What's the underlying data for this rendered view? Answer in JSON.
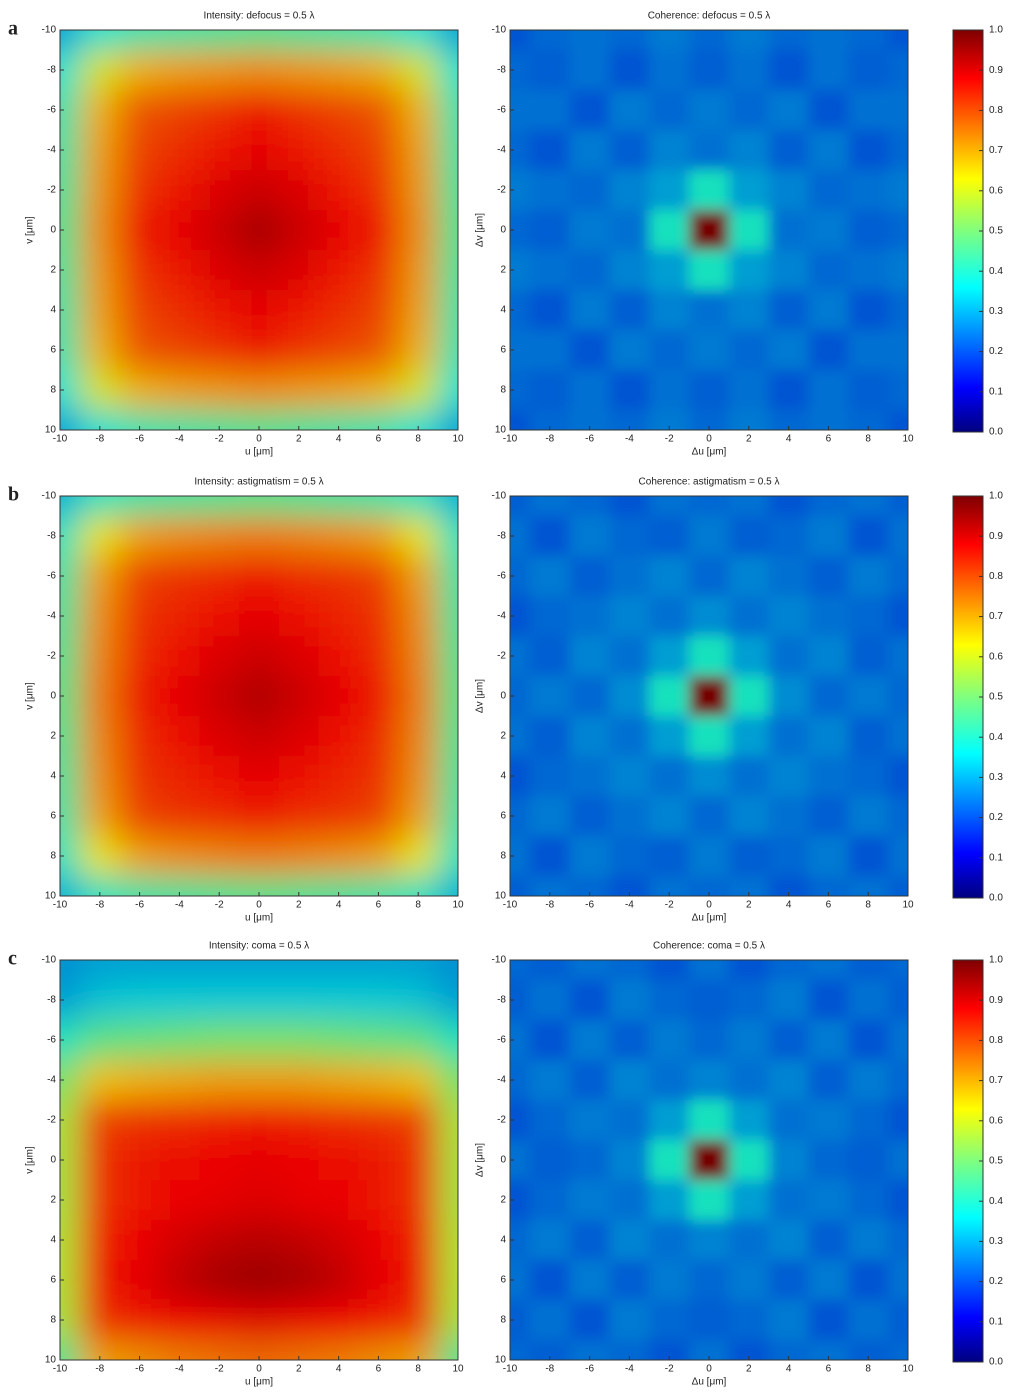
{
  "chart_data": [
    {
      "type": "heatmap",
      "panel_label": "a",
      "title": "Intensity: defocus = 0.5 λ",
      "xlabel": "u [μm]",
      "ylabel": "v [μm]",
      "x": [
        -10,
        -8,
        -6,
        -4,
        -2,
        0,
        2,
        4,
        6,
        8,
        10
      ],
      "y": [
        -10,
        -8,
        -6,
        -4,
        -2,
        0,
        2,
        4,
        6,
        8,
        10
      ],
      "z": [
        [
          0.3,
          0.38,
          0.42,
          0.43,
          0.44,
          0.45,
          0.44,
          0.43,
          0.42,
          0.38,
          0.3
        ],
        [
          0.38,
          0.6,
          0.68,
          0.7,
          0.71,
          0.72,
          0.71,
          0.7,
          0.68,
          0.6,
          0.38
        ],
        [
          0.42,
          0.68,
          0.78,
          0.8,
          0.82,
          0.85,
          0.82,
          0.8,
          0.78,
          0.68,
          0.42
        ],
        [
          0.43,
          0.7,
          0.8,
          0.83,
          0.85,
          0.88,
          0.85,
          0.83,
          0.8,
          0.7,
          0.43
        ],
        [
          0.44,
          0.71,
          0.82,
          0.85,
          0.89,
          0.91,
          0.89,
          0.85,
          0.82,
          0.71,
          0.44
        ],
        [
          0.45,
          0.72,
          0.85,
          0.88,
          0.91,
          0.95,
          0.91,
          0.88,
          0.85,
          0.72,
          0.45
        ],
        [
          0.44,
          0.71,
          0.82,
          0.85,
          0.89,
          0.91,
          0.89,
          0.85,
          0.82,
          0.71,
          0.44
        ],
        [
          0.43,
          0.7,
          0.8,
          0.83,
          0.85,
          0.88,
          0.85,
          0.83,
          0.8,
          0.7,
          0.43
        ],
        [
          0.42,
          0.68,
          0.78,
          0.8,
          0.82,
          0.85,
          0.82,
          0.8,
          0.78,
          0.68,
          0.42
        ],
        [
          0.38,
          0.6,
          0.68,
          0.7,
          0.71,
          0.72,
          0.71,
          0.7,
          0.68,
          0.6,
          0.38
        ],
        [
          0.3,
          0.38,
          0.42,
          0.43,
          0.44,
          0.45,
          0.44,
          0.43,
          0.42,
          0.38,
          0.3
        ]
      ],
      "xlim": [
        -10,
        10
      ],
      "ylim": [
        10,
        -10
      ],
      "xticks": [
        -10,
        -8,
        -6,
        -4,
        -2,
        0,
        2,
        4,
        6,
        8,
        10
      ],
      "yticks": [
        -10,
        -8,
        -6,
        -4,
        -2,
        0,
        2,
        4,
        6,
        8,
        10
      ]
    },
    {
      "type": "heatmap",
      "title": "Coherence: defocus = 0.5 λ",
      "xlabel": "Δu [μm]",
      "ylabel": "Δv [μm]",
      "x": [
        -10,
        -8,
        -6,
        -4,
        -2,
        0,
        2,
        4,
        6,
        8,
        10
      ],
      "y": [
        -10,
        -8,
        -6,
        -4,
        -2,
        0,
        2,
        4,
        6,
        8,
        10
      ],
      "z": [
        [
          0.22,
          0.24,
          0.25,
          0.24,
          0.26,
          0.24,
          0.26,
          0.24,
          0.25,
          0.24,
          0.22
        ],
        [
          0.24,
          0.23,
          0.25,
          0.22,
          0.25,
          0.23,
          0.25,
          0.22,
          0.25,
          0.23,
          0.24
        ],
        [
          0.25,
          0.25,
          0.22,
          0.26,
          0.24,
          0.26,
          0.24,
          0.26,
          0.22,
          0.25,
          0.25
        ],
        [
          0.24,
          0.22,
          0.26,
          0.23,
          0.27,
          0.25,
          0.27,
          0.23,
          0.26,
          0.22,
          0.24
        ],
        [
          0.26,
          0.25,
          0.24,
          0.27,
          0.3,
          0.4,
          0.3,
          0.27,
          0.24,
          0.25,
          0.26
        ],
        [
          0.24,
          0.23,
          0.26,
          0.25,
          0.4,
          1.0,
          0.4,
          0.25,
          0.26,
          0.23,
          0.24
        ],
        [
          0.26,
          0.25,
          0.24,
          0.27,
          0.3,
          0.4,
          0.3,
          0.27,
          0.24,
          0.25,
          0.26
        ],
        [
          0.24,
          0.22,
          0.26,
          0.23,
          0.27,
          0.25,
          0.27,
          0.23,
          0.26,
          0.22,
          0.24
        ],
        [
          0.25,
          0.25,
          0.22,
          0.26,
          0.24,
          0.26,
          0.24,
          0.26,
          0.22,
          0.25,
          0.25
        ],
        [
          0.24,
          0.23,
          0.25,
          0.22,
          0.25,
          0.23,
          0.25,
          0.22,
          0.25,
          0.23,
          0.24
        ],
        [
          0.22,
          0.24,
          0.25,
          0.24,
          0.26,
          0.24,
          0.26,
          0.24,
          0.25,
          0.24,
          0.22
        ]
      ],
      "xlim": [
        -10,
        10
      ],
      "ylim": [
        10,
        -10
      ],
      "xticks": [
        -10,
        -8,
        -6,
        -4,
        -2,
        0,
        2,
        4,
        6,
        8,
        10
      ],
      "yticks": [
        -10,
        -8,
        -6,
        -4,
        -2,
        0,
        2,
        4,
        6,
        8,
        10
      ],
      "colorbar": {
        "clim": [
          0,
          1
        ],
        "ticks": [
          {
            "value": 0,
            "label": "0.0"
          },
          0.1,
          0.2,
          0.3,
          0.4,
          0.5,
          0.6,
          0.7,
          0.8,
          0.9,
          {
            "value": 1,
            "label": "1.0"
          }
        ]
      }
    },
    {
      "type": "heatmap",
      "panel_label": "b",
      "title": "Intensity: astigmatism = 0.5 λ",
      "xlabel": "u [μm]",
      "ylabel": "v [μm]",
      "x": [
        -10,
        -8,
        -6,
        -4,
        -2,
        0,
        2,
        4,
        6,
        8,
        10
      ],
      "y": [
        -10,
        -8,
        -6,
        -4,
        -2,
        0,
        2,
        4,
        6,
        8,
        10
      ],
      "z": [
        [
          0.32,
          0.4,
          0.43,
          0.44,
          0.45,
          0.46,
          0.45,
          0.44,
          0.43,
          0.4,
          0.32
        ],
        [
          0.4,
          0.62,
          0.7,
          0.72,
          0.73,
          0.74,
          0.73,
          0.72,
          0.7,
          0.62,
          0.4
        ],
        [
          0.43,
          0.7,
          0.8,
          0.82,
          0.83,
          0.85,
          0.83,
          0.82,
          0.8,
          0.7,
          0.43
        ],
        [
          0.44,
          0.72,
          0.82,
          0.84,
          0.86,
          0.88,
          0.86,
          0.84,
          0.82,
          0.72,
          0.44
        ],
        [
          0.45,
          0.73,
          0.83,
          0.86,
          0.89,
          0.91,
          0.89,
          0.86,
          0.83,
          0.73,
          0.45
        ],
        [
          0.46,
          0.74,
          0.85,
          0.88,
          0.91,
          0.94,
          0.91,
          0.88,
          0.85,
          0.74,
          0.46
        ],
        [
          0.45,
          0.73,
          0.83,
          0.86,
          0.89,
          0.91,
          0.89,
          0.86,
          0.83,
          0.73,
          0.45
        ],
        [
          0.44,
          0.72,
          0.82,
          0.84,
          0.86,
          0.88,
          0.86,
          0.84,
          0.82,
          0.72,
          0.44
        ],
        [
          0.43,
          0.7,
          0.8,
          0.82,
          0.83,
          0.85,
          0.83,
          0.82,
          0.8,
          0.7,
          0.43
        ],
        [
          0.4,
          0.62,
          0.7,
          0.72,
          0.73,
          0.74,
          0.73,
          0.72,
          0.7,
          0.62,
          0.4
        ],
        [
          0.32,
          0.4,
          0.43,
          0.44,
          0.45,
          0.46,
          0.45,
          0.44,
          0.43,
          0.4,
          0.32
        ]
      ],
      "xlim": [
        -10,
        10
      ],
      "ylim": [
        10,
        -10
      ],
      "xticks": [
        -10,
        -8,
        -6,
        -4,
        -2,
        0,
        2,
        4,
        6,
        8,
        10
      ],
      "yticks": [
        -10,
        -8,
        -6,
        -4,
        -2,
        0,
        2,
        4,
        6,
        8,
        10
      ]
    },
    {
      "type": "heatmap",
      "title": "Coherence: astigmatism = 0.5 λ",
      "xlabel": "Δu [μm]",
      "ylabel": "Δv [μm]",
      "x": [
        -10,
        -8,
        -6,
        -4,
        -2,
        0,
        2,
        4,
        6,
        8,
        10
      ],
      "y": [
        -10,
        -8,
        -6,
        -4,
        -2,
        0,
        2,
        4,
        6,
        8,
        10
      ],
      "z": [
        [
          0.23,
          0.25,
          0.24,
          0.22,
          0.25,
          0.24,
          0.25,
          0.22,
          0.24,
          0.25,
          0.23
        ],
        [
          0.25,
          0.22,
          0.26,
          0.24,
          0.23,
          0.26,
          0.23,
          0.24,
          0.26,
          0.22,
          0.25
        ],
        [
          0.24,
          0.26,
          0.23,
          0.25,
          0.27,
          0.24,
          0.27,
          0.25,
          0.23,
          0.26,
          0.24
        ],
        [
          0.22,
          0.24,
          0.25,
          0.27,
          0.25,
          0.28,
          0.25,
          0.27,
          0.25,
          0.24,
          0.22
        ],
        [
          0.25,
          0.23,
          0.27,
          0.25,
          0.3,
          0.4,
          0.3,
          0.25,
          0.27,
          0.23,
          0.25
        ],
        [
          0.24,
          0.26,
          0.24,
          0.28,
          0.4,
          1.0,
          0.4,
          0.28,
          0.24,
          0.26,
          0.24
        ],
        [
          0.25,
          0.23,
          0.27,
          0.25,
          0.3,
          0.4,
          0.3,
          0.25,
          0.27,
          0.23,
          0.25
        ],
        [
          0.22,
          0.24,
          0.25,
          0.27,
          0.25,
          0.28,
          0.25,
          0.27,
          0.25,
          0.24,
          0.22
        ],
        [
          0.24,
          0.26,
          0.23,
          0.25,
          0.27,
          0.24,
          0.27,
          0.25,
          0.23,
          0.26,
          0.24
        ],
        [
          0.25,
          0.22,
          0.26,
          0.24,
          0.23,
          0.26,
          0.23,
          0.24,
          0.26,
          0.22,
          0.25
        ],
        [
          0.23,
          0.25,
          0.24,
          0.22,
          0.25,
          0.24,
          0.25,
          0.22,
          0.24,
          0.25,
          0.23
        ]
      ],
      "xlim": [
        -10,
        10
      ],
      "ylim": [
        10,
        -10
      ],
      "xticks": [
        -10,
        -8,
        -6,
        -4,
        -2,
        0,
        2,
        4,
        6,
        8,
        10
      ],
      "yticks": [
        -10,
        -8,
        -6,
        -4,
        -2,
        0,
        2,
        4,
        6,
        8,
        10
      ],
      "colorbar": {
        "clim": [
          0,
          1
        ],
        "ticks": [
          {
            "value": 0,
            "label": "0.0"
          },
          0.1,
          0.2,
          0.3,
          0.4,
          0.5,
          0.6,
          0.7,
          0.8,
          0.9,
          {
            "value": 1,
            "label": "1.0"
          }
        ]
      }
    },
    {
      "type": "heatmap",
      "panel_label": "c",
      "title": "Intensity: coma = 0.5 λ",
      "xlabel": "u [μm]",
      "ylabel": "v [μm]",
      "x": [
        -10,
        -8,
        -6,
        -4,
        -2,
        0,
        2,
        4,
        6,
        8,
        10
      ],
      "y": [
        -10,
        -8,
        -6,
        -4,
        -2,
        0,
        2,
        4,
        6,
        8,
        10
      ],
      "z": [
        [
          0.28,
          0.3,
          0.3,
          0.3,
          0.3,
          0.3,
          0.3,
          0.3,
          0.3,
          0.3,
          0.28
        ],
        [
          0.3,
          0.34,
          0.35,
          0.35,
          0.35,
          0.35,
          0.35,
          0.35,
          0.35,
          0.34,
          0.3
        ],
        [
          0.4,
          0.47,
          0.48,
          0.49,
          0.5,
          0.5,
          0.5,
          0.49,
          0.48,
          0.47,
          0.4
        ],
        [
          0.5,
          0.66,
          0.68,
          0.69,
          0.7,
          0.7,
          0.7,
          0.69,
          0.68,
          0.66,
          0.5
        ],
        [
          0.55,
          0.8,
          0.82,
          0.83,
          0.84,
          0.85,
          0.84,
          0.83,
          0.82,
          0.8,
          0.55
        ],
        [
          0.55,
          0.82,
          0.85,
          0.86,
          0.87,
          0.88,
          0.87,
          0.86,
          0.85,
          0.82,
          0.55
        ],
        [
          0.55,
          0.82,
          0.85,
          0.87,
          0.88,
          0.89,
          0.88,
          0.87,
          0.85,
          0.82,
          0.55
        ],
        [
          0.56,
          0.84,
          0.87,
          0.9,
          0.92,
          0.93,
          0.92,
          0.9,
          0.87,
          0.84,
          0.56
        ],
        [
          0.56,
          0.85,
          0.88,
          0.92,
          0.95,
          0.96,
          0.95,
          0.92,
          0.88,
          0.85,
          0.56
        ],
        [
          0.55,
          0.82,
          0.85,
          0.87,
          0.88,
          0.89,
          0.88,
          0.87,
          0.85,
          0.82,
          0.55
        ],
        [
          0.45,
          0.7,
          0.72,
          0.74,
          0.75,
          0.76,
          0.75,
          0.74,
          0.72,
          0.7,
          0.45
        ]
      ],
      "xlim": [
        -10,
        10
      ],
      "ylim": [
        10,
        -10
      ],
      "xticks": [
        -10,
        -8,
        -6,
        -4,
        -2,
        0,
        2,
        4,
        6,
        8,
        10
      ],
      "yticks": [
        -10,
        -8,
        -6,
        -4,
        -2,
        0,
        2,
        4,
        6,
        8,
        10
      ]
    },
    {
      "type": "heatmap",
      "title": "Coherence: coma = 0.5 λ",
      "xlabel": "Δu [μm]",
      "ylabel": "Δv [μm]",
      "x": [
        -10,
        -8,
        -6,
        -4,
        -2,
        0,
        2,
        4,
        6,
        8,
        10
      ],
      "y": [
        -10,
        -8,
        -6,
        -4,
        -2,
        0,
        2,
        4,
        6,
        8,
        10
      ],
      "z": [
        [
          0.24,
          0.23,
          0.25,
          0.24,
          0.22,
          0.25,
          0.22,
          0.24,
          0.25,
          0.23,
          0.24
        ],
        [
          0.23,
          0.25,
          0.22,
          0.26,
          0.24,
          0.23,
          0.24,
          0.26,
          0.22,
          0.25,
          0.23
        ],
        [
          0.25,
          0.22,
          0.26,
          0.23,
          0.26,
          0.24,
          0.26,
          0.23,
          0.26,
          0.22,
          0.25
        ],
        [
          0.24,
          0.26,
          0.23,
          0.27,
          0.25,
          0.27,
          0.25,
          0.27,
          0.23,
          0.26,
          0.24
        ],
        [
          0.22,
          0.24,
          0.26,
          0.25,
          0.3,
          0.4,
          0.3,
          0.25,
          0.26,
          0.24,
          0.22
        ],
        [
          0.25,
          0.23,
          0.24,
          0.27,
          0.4,
          1.0,
          0.4,
          0.27,
          0.24,
          0.23,
          0.25
        ],
        [
          0.22,
          0.24,
          0.26,
          0.25,
          0.3,
          0.4,
          0.3,
          0.25,
          0.26,
          0.24,
          0.22
        ],
        [
          0.24,
          0.26,
          0.23,
          0.27,
          0.25,
          0.27,
          0.25,
          0.27,
          0.23,
          0.26,
          0.24
        ],
        [
          0.25,
          0.22,
          0.26,
          0.23,
          0.26,
          0.24,
          0.26,
          0.23,
          0.26,
          0.22,
          0.25
        ],
        [
          0.23,
          0.25,
          0.22,
          0.26,
          0.24,
          0.23,
          0.24,
          0.26,
          0.22,
          0.25,
          0.23
        ],
        [
          0.24,
          0.23,
          0.25,
          0.24,
          0.22,
          0.25,
          0.22,
          0.24,
          0.25,
          0.23,
          0.24
        ]
      ],
      "xlim": [
        -10,
        10
      ],
      "ylim": [
        10,
        -10
      ],
      "xticks": [
        -10,
        -8,
        -6,
        -4,
        -2,
        0,
        2,
        4,
        6,
        8,
        10
      ],
      "yticks": [
        -10,
        -8,
        -6,
        -4,
        -2,
        0,
        2,
        4,
        6,
        8,
        10
      ],
      "colorbar": {
        "clim": [
          0,
          1
        ],
        "ticks": [
          {
            "value": 0,
            "label": "0.0"
          },
          0.1,
          0.2,
          0.3,
          0.4,
          0.5,
          0.6,
          0.7,
          0.8,
          0.9,
          {
            "value": 1,
            "label": "1.0"
          }
        ]
      }
    }
  ]
}
